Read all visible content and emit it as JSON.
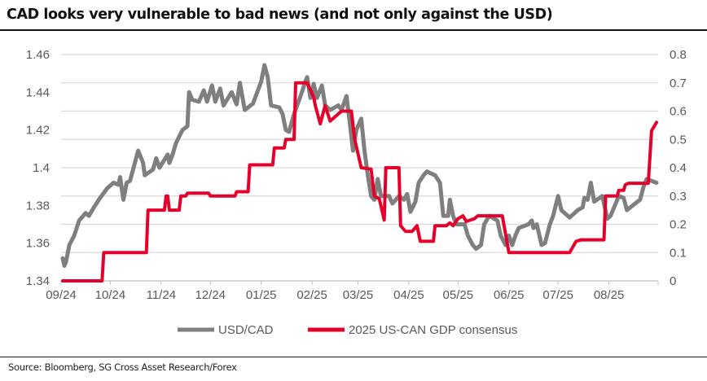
{
  "title": "CAD looks very vulnerable to bad news (and not only against the USD)",
  "source": "Source: Bloomberg, SG Cross Asset Research/Forex",
  "chart_data": {
    "type": "line",
    "title": "CAD looks very vulnerable to bad news (and not only against the USD)",
    "x_range": [
      "2024-09-01",
      "2025-08-31"
    ],
    "x_ticks": [
      {
        "date": "2024-09-01",
        "label": "09/24"
      },
      {
        "date": "2024-10-01",
        "label": "10/24"
      },
      {
        "date": "2024-11-01",
        "label": "11/24"
      },
      {
        "date": "2024-12-01",
        "label": "12/24"
      },
      {
        "date": "2025-01-01",
        "label": "01/25"
      },
      {
        "date": "2025-02-01",
        "label": "02/25"
      },
      {
        "date": "2025-03-01",
        "label": "03/25"
      },
      {
        "date": "2025-04-01",
        "label": "04/25"
      },
      {
        "date": "2025-05-01",
        "label": "05/25"
      },
      {
        "date": "2025-06-01",
        "label": "06/25"
      },
      {
        "date": "2025-07-01",
        "label": "07/25"
      },
      {
        "date": "2025-08-01",
        "label": "08/25"
      }
    ],
    "y_left": {
      "range": [
        1.34,
        1.46
      ],
      "ticks": [
        "1.34",
        "1.36",
        "1.38",
        "1.4",
        "1.42",
        "1.44",
        "1.46"
      ]
    },
    "y_right": {
      "range": [
        0,
        0.8
      ],
      "ticks": [
        "0",
        "0.1",
        "0.2",
        "0.3",
        "0.4",
        "0.5",
        "0.6",
        "0.7",
        "0.8"
      ]
    },
    "grid": true,
    "legend_position": "bottom",
    "series": [
      {
        "name": "USD/CAD",
        "axis": "left",
        "color": "#7f7f7f",
        "points": [
          [
            "2024-09-02",
            1.352
          ],
          [
            "2024-09-03",
            1.348
          ],
          [
            "2024-09-04",
            1.35
          ],
          [
            "2024-09-06",
            1.359
          ],
          [
            "2024-09-09",
            1.364
          ],
          [
            "2024-09-12",
            1.372
          ],
          [
            "2024-09-16",
            1.376
          ],
          [
            "2024-09-18",
            1.3745
          ],
          [
            "2024-09-21",
            1.379
          ],
          [
            "2024-09-24",
            1.383
          ],
          [
            "2024-09-29",
            1.389
          ],
          [
            "2024-10-03",
            1.392
          ],
          [
            "2024-10-06",
            1.391
          ],
          [
            "2024-10-07",
            1.395
          ],
          [
            "2024-10-09",
            1.383
          ],
          [
            "2024-10-11",
            1.392
          ],
          [
            "2024-10-13",
            1.393
          ],
          [
            "2024-10-16",
            1.4025
          ],
          [
            "2024-10-18",
            1.409
          ],
          [
            "2024-10-21",
            1.4025
          ],
          [
            "2024-10-22",
            1.396
          ],
          [
            "2024-10-27",
            1.399
          ],
          [
            "2024-10-29",
            1.405
          ],
          [
            "2024-10-31",
            1.4
          ],
          [
            "2024-11-05",
            1.407
          ],
          [
            "2024-11-06",
            1.4025
          ],
          [
            "2024-11-08",
            1.407
          ],
          [
            "2024-11-10",
            1.413
          ],
          [
            "2024-11-14",
            1.42
          ],
          [
            "2024-11-17",
            1.422
          ],
          [
            "2024-11-18",
            1.44
          ],
          [
            "2024-11-20",
            1.436
          ],
          [
            "2024-11-24",
            1.435
          ],
          [
            "2024-11-27",
            1.441
          ],
          [
            "2024-11-29",
            1.435
          ],
          [
            "2024-12-02",
            1.4436
          ],
          [
            "2024-12-04",
            1.435
          ],
          [
            "2024-12-07",
            1.442
          ],
          [
            "2024-12-09",
            1.433
          ],
          [
            "2024-12-14",
            1.44
          ],
          [
            "2024-12-17",
            1.4336
          ],
          [
            "2024-12-19",
            1.445
          ],
          [
            "2024-12-22",
            1.4306
          ],
          [
            "2024-12-27",
            1.434
          ],
          [
            "2025-01-01",
            1.4457
          ],
          [
            "2025-01-03",
            1.4544
          ],
          [
            "2025-01-05",
            1.448
          ],
          [
            "2025-01-07",
            1.433
          ],
          [
            "2025-01-12",
            1.432
          ],
          [
            "2025-01-14",
            1.4285
          ],
          [
            "2025-01-16",
            1.42
          ],
          [
            "2025-01-18",
            1.419
          ],
          [
            "2025-01-21",
            1.4285
          ],
          [
            "2025-01-25",
            1.438
          ],
          [
            "2025-01-28",
            1.4457
          ],
          [
            "2025-01-29",
            1.448
          ],
          [
            "2025-01-31",
            1.437
          ],
          [
            "2025-02-02",
            1.4445
          ],
          [
            "2025-02-04",
            1.437
          ],
          [
            "2025-02-07",
            1.4436
          ],
          [
            "2025-02-09",
            1.433
          ],
          [
            "2025-02-12",
            1.4306
          ],
          [
            "2025-02-17",
            1.433
          ],
          [
            "2025-02-19",
            1.4306
          ],
          [
            "2025-02-22",
            1.438
          ],
          [
            "2025-02-24",
            1.424
          ],
          [
            "2025-02-26",
            1.409
          ],
          [
            "2025-02-28",
            1.42
          ],
          [
            "2025-03-03",
            1.426
          ],
          [
            "2025-03-05",
            1.409
          ],
          [
            "2025-03-07",
            1.396
          ],
          [
            "2025-03-09",
            1.385
          ],
          [
            "2025-03-11",
            1.383
          ],
          [
            "2025-03-13",
            1.394
          ],
          [
            "2025-03-15",
            1.385
          ],
          [
            "2025-03-20",
            1.385
          ],
          [
            "2025-03-22",
            1.381
          ],
          [
            "2025-03-26",
            1.385
          ],
          [
            "2025-03-29",
            1.383
          ],
          [
            "2025-03-31",
            1.386
          ],
          [
            "2025-04-02",
            1.3766
          ],
          [
            "2025-04-05",
            1.382
          ],
          [
            "2025-04-07",
            1.392
          ],
          [
            "2025-04-10",
            1.396
          ],
          [
            "2025-04-12",
            1.398
          ],
          [
            "2025-04-17",
            1.396
          ],
          [
            "2025-04-20",
            1.392
          ],
          [
            "2025-04-22",
            1.3745
          ],
          [
            "2025-04-25",
            1.3745
          ],
          [
            "2025-04-26",
            1.383
          ],
          [
            "2025-04-28",
            1.3745
          ],
          [
            "2025-04-30",
            1.37
          ],
          [
            "2025-05-05",
            1.37
          ],
          [
            "2025-05-07",
            1.364
          ],
          [
            "2025-05-10",
            1.359
          ],
          [
            "2025-05-12",
            1.357
          ],
          [
            "2025-05-15",
            1.359
          ],
          [
            "2025-05-17",
            1.37
          ],
          [
            "2025-05-20",
            1.3745
          ],
          [
            "2025-05-25",
            1.372
          ],
          [
            "2025-05-27",
            1.364
          ],
          [
            "2025-05-30",
            1.359
          ],
          [
            "2025-06-01",
            1.364
          ],
          [
            "2025-06-03",
            1.359
          ],
          [
            "2025-06-05",
            1.364
          ],
          [
            "2025-06-07",
            1.368
          ],
          [
            "2025-06-13",
            1.37
          ],
          [
            "2025-06-15",
            1.372
          ],
          [
            "2025-06-16",
            1.368
          ],
          [
            "2025-06-18",
            1.37
          ],
          [
            "2025-06-21",
            1.359
          ],
          [
            "2025-06-23",
            1.36
          ],
          [
            "2025-06-26",
            1.37
          ],
          [
            "2025-06-28",
            1.3745
          ],
          [
            "2025-07-01",
            1.385
          ],
          [
            "2025-07-03",
            1.3775
          ],
          [
            "2025-07-08",
            1.3736
          ],
          [
            "2025-07-13",
            1.3775
          ],
          [
            "2025-07-16",
            1.379
          ],
          [
            "2025-07-17",
            1.384
          ],
          [
            "2025-07-19",
            1.383
          ],
          [
            "2025-07-21",
            1.392
          ],
          [
            "2025-07-23",
            1.382
          ],
          [
            "2025-07-28",
            1.385
          ],
          [
            "2025-07-31",
            1.373
          ],
          [
            "2025-08-02",
            1.3745
          ],
          [
            "2025-08-07",
            1.385
          ],
          [
            "2025-08-10",
            1.384
          ],
          [
            "2025-08-12",
            1.3775
          ],
          [
            "2025-08-17",
            1.381
          ],
          [
            "2025-08-20",
            1.383
          ],
          [
            "2025-08-22",
            1.3896
          ],
          [
            "2025-08-24",
            1.394
          ],
          [
            "2025-08-27",
            1.393
          ],
          [
            "2025-08-30",
            1.392
          ]
        ]
      },
      {
        "name": "2025 US-CAN GDP consensus",
        "axis": "right",
        "color": "#e4002b",
        "points": [
          [
            "2024-09-02",
            0
          ],
          [
            "2024-09-26",
            0
          ],
          [
            "2024-09-27",
            0.1
          ],
          [
            "2024-10-23",
            0.1
          ],
          [
            "2024-10-24",
            0.25
          ],
          [
            "2024-11-03",
            0.25
          ],
          [
            "2024-11-04",
            0.3
          ],
          [
            "2024-11-05",
            0.3
          ],
          [
            "2024-11-06",
            0.25
          ],
          [
            "2024-11-12",
            0.25
          ],
          [
            "2024-11-13",
            0.3
          ],
          [
            "2024-11-16",
            0.3
          ],
          [
            "2024-11-17",
            0.31
          ],
          [
            "2024-11-30",
            0.31
          ],
          [
            "2024-12-01",
            0.3
          ],
          [
            "2024-12-16",
            0.3
          ],
          [
            "2024-12-17",
            0.315
          ],
          [
            "2024-12-24",
            0.315
          ],
          [
            "2024-12-25",
            0.41
          ],
          [
            "2025-01-08",
            0.41
          ],
          [
            "2025-01-09",
            0.47
          ],
          [
            "2025-01-15",
            0.47
          ],
          [
            "2025-01-16",
            0.5
          ],
          [
            "2025-01-21",
            0.5
          ],
          [
            "2025-01-22",
            0.7
          ],
          [
            "2025-01-29",
            0.7
          ],
          [
            "2025-02-02",
            0.65
          ],
          [
            "2025-02-03",
            0.62
          ],
          [
            "2025-02-06",
            0.555
          ],
          [
            "2025-02-09",
            0.62
          ],
          [
            "2025-02-12",
            0.565
          ],
          [
            "2025-02-19",
            0.6
          ],
          [
            "2025-02-25",
            0.6
          ],
          [
            "2025-02-27",
            0.5
          ],
          [
            "2025-03-03",
            0.4
          ],
          [
            "2025-03-09",
            0.395
          ],
          [
            "2025-03-11",
            0.3
          ],
          [
            "2025-03-14",
            0.29
          ],
          [
            "2025-03-17",
            0.215
          ],
          [
            "2025-03-18",
            0.4
          ],
          [
            "2025-03-26",
            0.4
          ],
          [
            "2025-03-27",
            0.195
          ],
          [
            "2025-03-30",
            0.175
          ],
          [
            "2025-04-03",
            0.175
          ],
          [
            "2025-04-06",
            0.195
          ],
          [
            "2025-04-08",
            0.14
          ],
          [
            "2025-04-16",
            0.14
          ],
          [
            "2025-04-17",
            0.195
          ],
          [
            "2025-04-24",
            0.195
          ],
          [
            "2025-04-26",
            0.205
          ],
          [
            "2025-04-28",
            0.195
          ],
          [
            "2025-05-01",
            0.22
          ],
          [
            "2025-05-04",
            0.23
          ],
          [
            "2025-05-06",
            0.21
          ],
          [
            "2025-05-11",
            0.22
          ],
          [
            "2025-05-13",
            0.23
          ],
          [
            "2025-05-28",
            0.23
          ],
          [
            "2025-06-01",
            0.1
          ],
          [
            "2025-07-08",
            0.1
          ],
          [
            "2025-07-12",
            0.14
          ],
          [
            "2025-07-15",
            0.145
          ],
          [
            "2025-07-29",
            0.145
          ],
          [
            "2025-07-30",
            0.3
          ],
          [
            "2025-08-06",
            0.3
          ],
          [
            "2025-08-07",
            0.32
          ],
          [
            "2025-08-10",
            0.32
          ],
          [
            "2025-08-11",
            0.34
          ],
          [
            "2025-08-13",
            0.345
          ],
          [
            "2025-08-25",
            0.345
          ],
          [
            "2025-08-27",
            0.53
          ],
          [
            "2025-08-30",
            0.56
          ]
        ]
      }
    ]
  }
}
